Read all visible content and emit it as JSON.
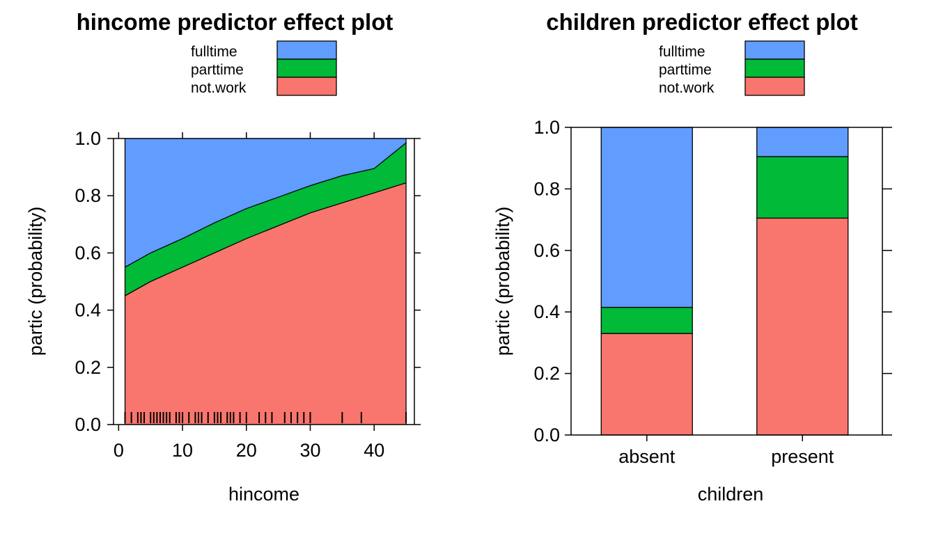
{
  "colors": {
    "fulltime": "#619CFF",
    "parttime": "#00BA38",
    "not.work": "#F8766D"
  },
  "legend_entries": [
    "fulltime",
    "parttime",
    "not.work"
  ],
  "chart_data": [
    {
      "type": "area",
      "title": "hincome predictor effect plot",
      "xlabel": "hincome",
      "ylabel": "partic (probability)",
      "xlim": [
        -0.8,
        46.3
      ],
      "ylim": [
        0,
        1
      ],
      "xticks": [
        "0",
        "10",
        "20",
        "30",
        "40"
      ],
      "yticks": [
        "0.0",
        "0.2",
        "0.4",
        "0.6",
        "0.8",
        "1.0"
      ],
      "legend": "top-center",
      "stacking_order_bottom_to_top": [
        "not.work",
        "parttime",
        "fulltime"
      ],
      "x": [
        1,
        5,
        10,
        15,
        20,
        25,
        30,
        35,
        40,
        45
      ],
      "series": [
        {
          "name": "not.work",
          "values": [
            0.45,
            0.5,
            0.55,
            0.6,
            0.65,
            0.695,
            0.74,
            0.775,
            0.81,
            0.845
          ]
        },
        {
          "name": "parttime",
          "values": [
            0.1,
            0.1,
            0.1,
            0.105,
            0.105,
            0.1,
            0.095,
            0.095,
            0.085,
            0.14
          ]
        },
        {
          "name": "fulltime",
          "values": [
            0.45,
            0.4,
            0.35,
            0.295,
            0.245,
            0.205,
            0.165,
            0.13,
            0.105,
            0.015
          ]
        }
      ],
      "rug": [
        1,
        2,
        3,
        3.5,
        4,
        5,
        5.5,
        6,
        6.5,
        7,
        7.5,
        8,
        9,
        9.5,
        10,
        11,
        12,
        12.5,
        13,
        14,
        15,
        15.5,
        16,
        17,
        17.5,
        18,
        19,
        20,
        22,
        23,
        24,
        26,
        27,
        28,
        29,
        30,
        35,
        38,
        45
      ]
    },
    {
      "type": "bar",
      "title": "children predictor effect plot",
      "xlabel": "children",
      "ylabel": "partic (probability)",
      "ylim": [
        0,
        1
      ],
      "yticks": [
        "0.0",
        "0.2",
        "0.4",
        "0.6",
        "0.8",
        "1.0"
      ],
      "categories": [
        "absent",
        "present"
      ],
      "legend": "top-center",
      "stacked": true,
      "series": [
        {
          "name": "not.work",
          "values": [
            0.33,
            0.705
          ]
        },
        {
          "name": "parttime",
          "values": [
            0.085,
            0.2
          ]
        },
        {
          "name": "fulltime",
          "values": [
            0.585,
            0.095
          ]
        }
      ]
    }
  ]
}
